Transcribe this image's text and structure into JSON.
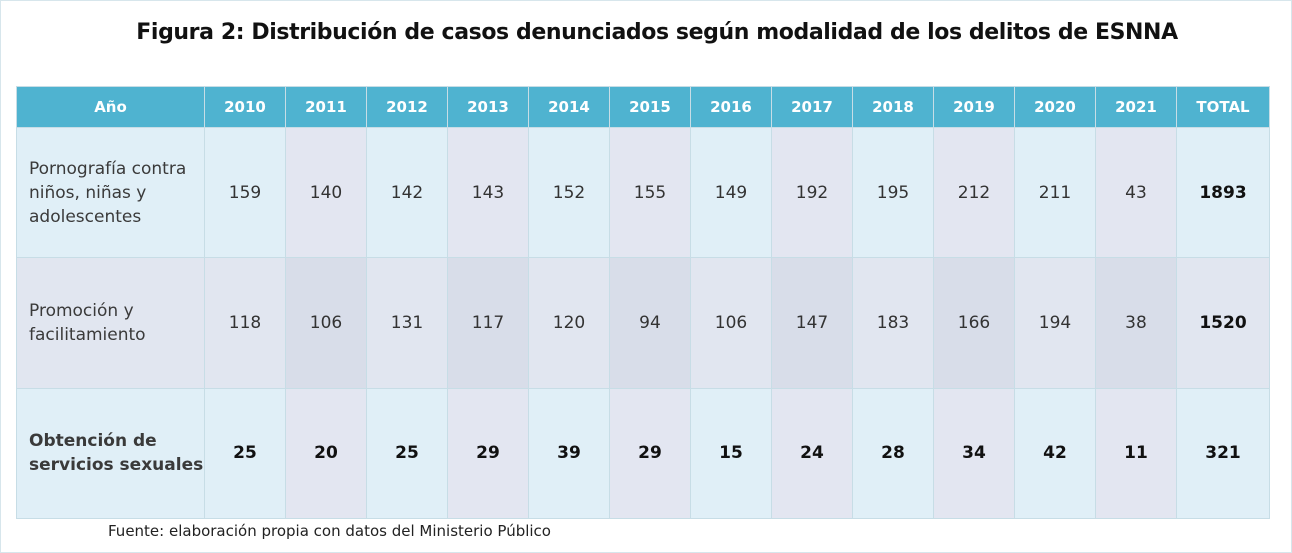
{
  "title": "Figura 2: Distribución de casos denunciados según modalidad de los delitos de ESNNA",
  "table": {
    "header": {
      "label": "Año",
      "years": [
        "2010",
        "2011",
        "2012",
        "2013",
        "2014",
        "2015",
        "2016",
        "2017",
        "2018",
        "2019",
        "2020",
        "2021"
      ],
      "total": "TOTAL"
    },
    "rows": [
      {
        "label": "Pornografía contra niños, niñas y adolescentes",
        "values": [
          "159",
          "140",
          "142",
          "143",
          "152",
          "155",
          "149",
          "192",
          "195",
          "212",
          "211",
          "43"
        ],
        "total": "1893"
      },
      {
        "label": "Promoción y facilitamiento",
        "values": [
          "118",
          "106",
          "131",
          "117",
          "120",
          "94",
          "106",
          "147",
          "183",
          "166",
          "194",
          "38"
        ],
        "total": "1520"
      },
      {
        "label": "Obtención de servicios sexuales",
        "values": [
          "25",
          "20",
          "25",
          "29",
          "39",
          "29",
          "15",
          "24",
          "28",
          "34",
          "42",
          "11"
        ],
        "total": "321"
      }
    ]
  },
  "source": "Fuente: elaboración propia con datos del Ministerio Público"
}
